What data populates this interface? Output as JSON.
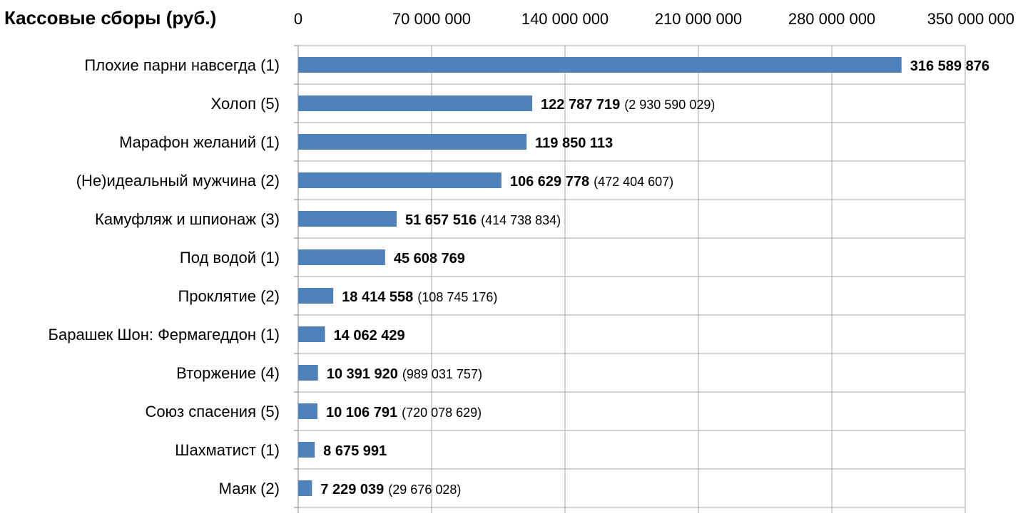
{
  "chart_data": {
    "type": "bar",
    "orientation": "horizontal",
    "title": "Кассовые сборы (руб.)",
    "xlabel": "",
    "ylabel": "",
    "xlim": [
      0,
      350000000
    ],
    "x_ticks": [
      0,
      70000000,
      140000000,
      210000000,
      280000000,
      350000000
    ],
    "x_tick_labels": [
      "0",
      "70 000 000",
      "140 000 000",
      "210 000 000",
      "280 000 000",
      "350 000 000"
    ],
    "x_axis_position": "top",
    "grid": true,
    "legend": "none",
    "bar_color": "#4f81bd",
    "categories": [
      "Плохие парни навсегда (1)",
      "Холоп (5)",
      "Марафон желаний (1)",
      "(Не)идеальный мужчина (2)",
      "Камуфляж и шпионаж (3)",
      "Под водой (1)",
      "Проклятие (2)",
      "Барашек Шон: Фермагеддон (1)",
      "Вторжение (4)",
      "Союз спасения (5)",
      "Шахматист (1)",
      "Маяк (2)"
    ],
    "values": [
      316589876,
      122787719,
      119850113,
      106629778,
      51657516,
      45608769,
      18414558,
      14062429,
      10391920,
      10106791,
      8675991,
      7229039
    ],
    "value_labels": [
      "316 589 876",
      "122 787 719",
      "119 850 113",
      "106 629 778",
      "51 657 516",
      "45 608 769",
      "18 414 558",
      "14 062 429",
      "10 391 920",
      "10 106 791",
      "8 675 991",
      "7 229 039"
    ],
    "extra_labels": [
      "",
      "(2 930 590 029)",
      "",
      "(472 404 607)",
      "(414 738 834)",
      "",
      "(108 745 176)",
      "",
      "(989 031 757)",
      "(720 078 629)",
      "",
      "(29 676 028)"
    ]
  }
}
